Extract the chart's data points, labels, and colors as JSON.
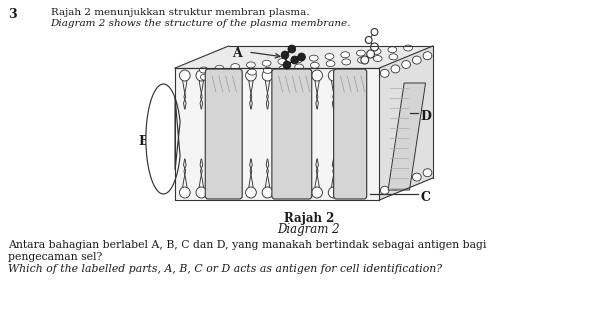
{
  "question_number": "3",
  "title_malay": "Rajah 2 menunjukkan struktur membran plasma.",
  "title_english": "Diagram 2 shows the structure of the plasma membrane.",
  "caption_malay": "Rajah 2",
  "caption_english": "Diagram 2",
  "question_malay_1": "Antara bahagian berlabel A, B, C dan D, yang manakah bertindak sebagai antigen bagi",
  "question_malay_2": "pengecaman sel?",
  "question_english": "Which of the labelled parts, A, B, C or D acts as antigen for cell identification?",
  "bg_color": "#ffffff",
  "text_color": "#1a1a1a",
  "label_A": "A",
  "label_B": "B",
  "label_C": "C",
  "label_D": "D",
  "fig_width": 6.04,
  "fig_height": 3.13,
  "dpi": 100
}
